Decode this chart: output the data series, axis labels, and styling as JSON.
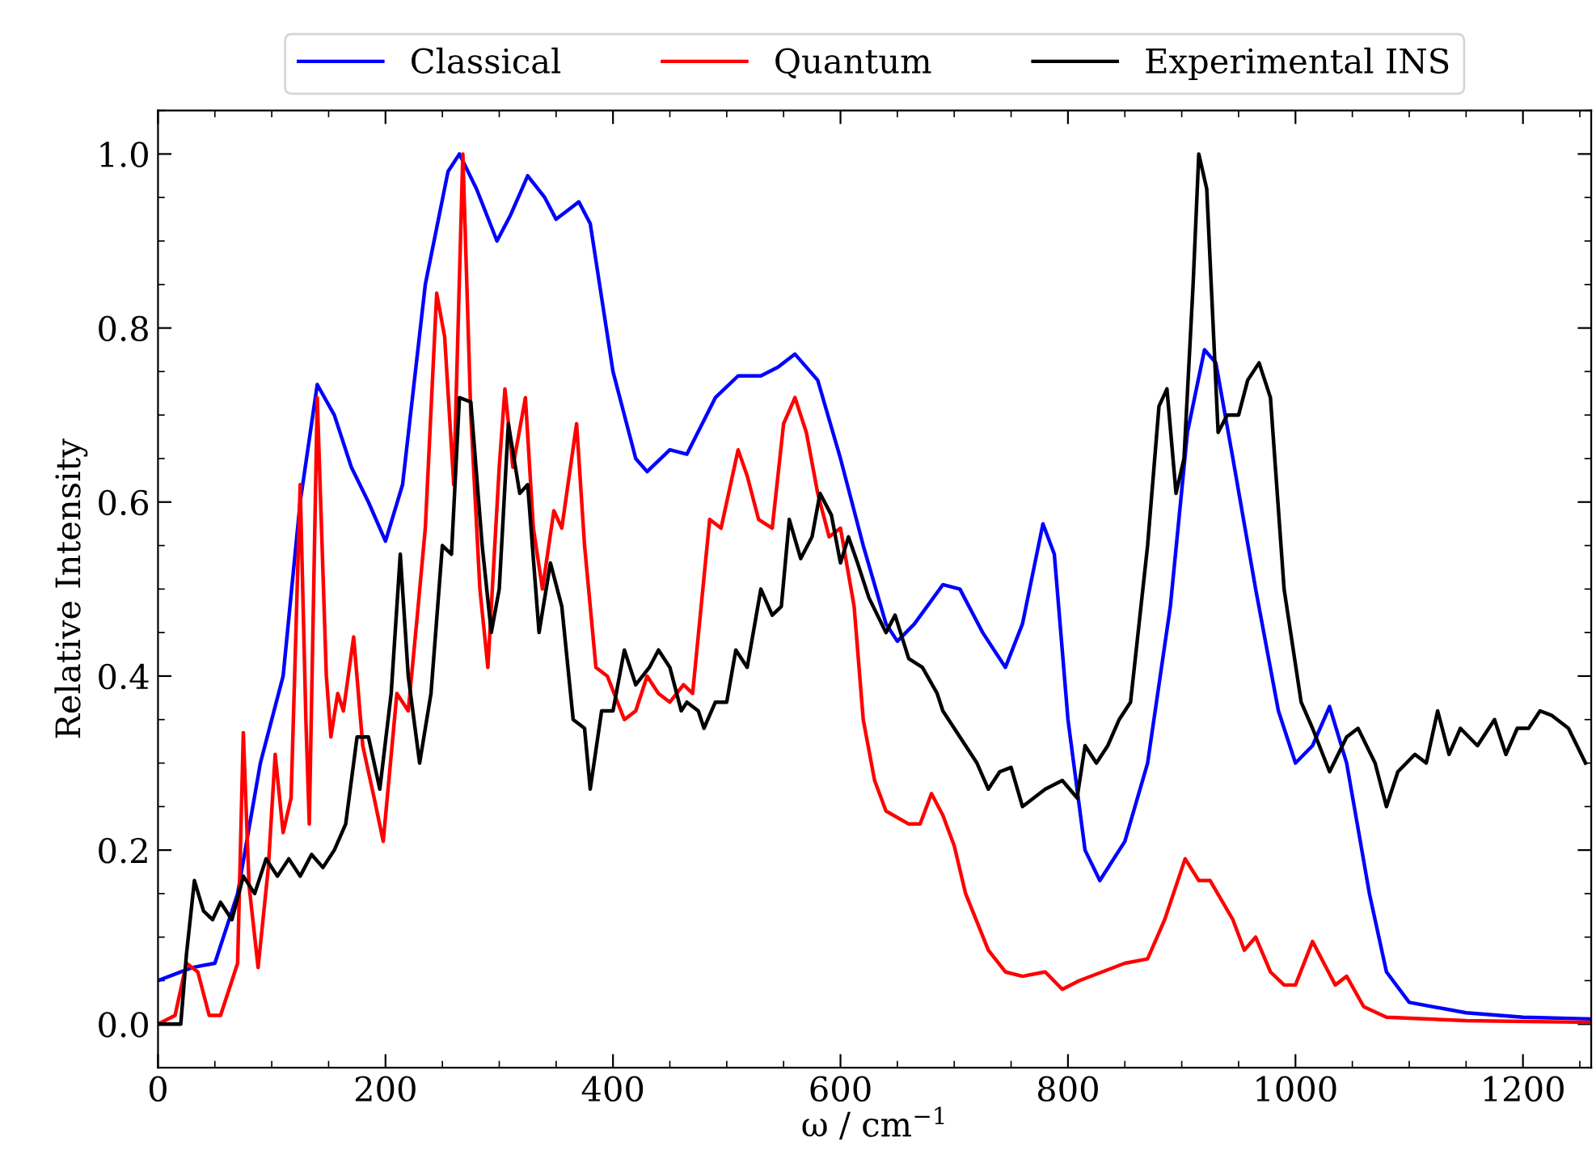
{
  "chart_data": {
    "type": "line",
    "xlabel": "ω / cm$^{−1}$",
    "ylabel": "Relative Intensity",
    "xlim": [
      0,
      1260
    ],
    "xticks": [
      0,
      200,
      400,
      600,
      800,
      1000,
      1200
    ],
    "ylim": [
      -0.05,
      1.05
    ],
    "yticks": [
      {
        "value": 0,
        "label": "0.0"
      },
      0.2,
      0.4,
      0.6,
      0.8,
      {
        "value": 1,
        "label": "1.0"
      }
    ],
    "grid": false,
    "legend": "top",
    "marker": "none",
    "line_style": "solid",
    "series": [
      {
        "name": "Classical",
        "color": "#0000ff",
        "x": [
          0,
          30,
          50,
          70,
          90,
          110,
          125,
          140,
          155,
          170,
          185,
          200,
          215,
          235,
          255,
          265,
          280,
          298,
          310,
          325,
          340,
          350,
          370,
          380,
          400,
          420,
          430,
          450,
          465,
          490,
          510,
          530,
          545,
          560,
          580,
          600,
          620,
          640,
          650,
          665,
          690,
          705,
          725,
          745,
          760,
          778,
          788,
          800,
          815,
          828,
          850,
          870,
          890,
          905,
          920,
          930,
          945,
          965,
          985,
          1000,
          1015,
          1030,
          1045,
          1065,
          1080,
          1100,
          1150,
          1200,
          1260
        ],
        "values": [
          0.05,
          0.065,
          0.07,
          0.15,
          0.3,
          0.4,
          0.6,
          0.735,
          0.7,
          0.64,
          0.6,
          0.555,
          0.62,
          0.85,
          0.98,
          1.0,
          0.96,
          0.9,
          0.93,
          0.975,
          0.95,
          0.925,
          0.945,
          0.92,
          0.75,
          0.65,
          0.635,
          0.66,
          0.655,
          0.72,
          0.745,
          0.745,
          0.755,
          0.77,
          0.74,
          0.65,
          0.55,
          0.46,
          0.44,
          0.46,
          0.505,
          0.5,
          0.45,
          0.41,
          0.46,
          0.575,
          0.54,
          0.35,
          0.2,
          0.165,
          0.21,
          0.3,
          0.48,
          0.68,
          0.775,
          0.76,
          0.65,
          0.5,
          0.36,
          0.3,
          0.32,
          0.365,
          0.3,
          0.15,
          0.06,
          0.025,
          0.013,
          0.008,
          0.006
        ]
      },
      {
        "name": "Quantum",
        "color": "#ff0000",
        "x": [
          0,
          15,
          25,
          35,
          45,
          55,
          65,
          70,
          75,
          80,
          88,
          97,
          103,
          110,
          117,
          125,
          130,
          133,
          140,
          148,
          152,
          158,
          163,
          172,
          180,
          190,
          198,
          210,
          220,
          228,
          235,
          245,
          252,
          260,
          268,
          275,
          283,
          290,
          300,
          305,
          312,
          323,
          330,
          338,
          348,
          355,
          368,
          375,
          385,
          395,
          410,
          420,
          430,
          440,
          450,
          462,
          470,
          485,
          495,
          510,
          518,
          528,
          540,
          550,
          560,
          570,
          580,
          590,
          600,
          612,
          620,
          630,
          640,
          660,
          670,
          680,
          690,
          700,
          710,
          730,
          745,
          760,
          780,
          795,
          810,
          830,
          850,
          870,
          885,
          903,
          915,
          925,
          945,
          955,
          965,
          978,
          990,
          1000,
          1015,
          1025,
          1035,
          1045,
          1060,
          1080,
          1150,
          1260
        ],
        "values": [
          0.0,
          0.01,
          0.07,
          0.06,
          0.01,
          0.01,
          0.05,
          0.07,
          0.335,
          0.16,
          0.065,
          0.18,
          0.31,
          0.22,
          0.26,
          0.62,
          0.35,
          0.23,
          0.72,
          0.4,
          0.33,
          0.38,
          0.36,
          0.445,
          0.32,
          0.26,
          0.21,
          0.38,
          0.36,
          0.47,
          0.57,
          0.84,
          0.79,
          0.62,
          1.0,
          0.7,
          0.5,
          0.41,
          0.64,
          0.73,
          0.64,
          0.72,
          0.57,
          0.5,
          0.59,
          0.57,
          0.69,
          0.55,
          0.41,
          0.4,
          0.35,
          0.36,
          0.4,
          0.38,
          0.37,
          0.39,
          0.38,
          0.58,
          0.57,
          0.66,
          0.63,
          0.58,
          0.57,
          0.69,
          0.72,
          0.68,
          0.61,
          0.56,
          0.57,
          0.48,
          0.35,
          0.28,
          0.245,
          0.23,
          0.23,
          0.265,
          0.24,
          0.205,
          0.15,
          0.085,
          0.06,
          0.055,
          0.06,
          0.04,
          0.05,
          0.06,
          0.07,
          0.075,
          0.12,
          0.19,
          0.165,
          0.165,
          0.12,
          0.085,
          0.1,
          0.06,
          0.045,
          0.045,
          0.095,
          0.07,
          0.045,
          0.055,
          0.02,
          0.008,
          0.004,
          0.002
        ]
      },
      {
        "name": "Experimental INS",
        "color": "#000000",
        "x": [
          0,
          20,
          25,
          32,
          40,
          48,
          55,
          65,
          75,
          85,
          95,
          105,
          115,
          125,
          135,
          145,
          155,
          165,
          175,
          185,
          195,
          205,
          213,
          220,
          230,
          240,
          250,
          258,
          265,
          275,
          285,
          293,
          300,
          308,
          318,
          325,
          335,
          345,
          355,
          365,
          375,
          380,
          390,
          400,
          410,
          420,
          432,
          440,
          450,
          460,
          465,
          475,
          480,
          490,
          500,
          508,
          518,
          530,
          540,
          548,
          555,
          565,
          575,
          582,
          592,
          600,
          607,
          615,
          625,
          640,
          648,
          660,
          672,
          685,
          690,
          700,
          710,
          720,
          730,
          740,
          750,
          760,
          780,
          795,
          808,
          815,
          825,
          835,
          845,
          855,
          870,
          880,
          887,
          895,
          902,
          910,
          915,
          922,
          932,
          940,
          950,
          958,
          968,
          978,
          990,
          1005,
          1015,
          1030,
          1045,
          1055,
          1070,
          1080,
          1090,
          1105,
          1115,
          1125,
          1135,
          1145,
          1160,
          1175,
          1185,
          1195,
          1205,
          1215,
          1225,
          1240,
          1255
        ],
        "values": [
          0,
          0.0,
          0.08,
          0.165,
          0.13,
          0.12,
          0.14,
          0.12,
          0.17,
          0.15,
          0.19,
          0.17,
          0.19,
          0.17,
          0.195,
          0.18,
          0.2,
          0.23,
          0.33,
          0.33,
          0.27,
          0.38,
          0.54,
          0.4,
          0.3,
          0.38,
          0.55,
          0.54,
          0.72,
          0.715,
          0.55,
          0.45,
          0.5,
          0.69,
          0.61,
          0.62,
          0.45,
          0.53,
          0.48,
          0.35,
          0.34,
          0.27,
          0.36,
          0.36,
          0.43,
          0.39,
          0.41,
          0.43,
          0.41,
          0.36,
          0.37,
          0.36,
          0.34,
          0.37,
          0.37,
          0.43,
          0.41,
          0.5,
          0.47,
          0.48,
          0.58,
          0.535,
          0.56,
          0.61,
          0.585,
          0.53,
          0.56,
          0.53,
          0.49,
          0.45,
          0.47,
          0.42,
          0.41,
          0.38,
          0.36,
          0.34,
          0.32,
          0.3,
          0.27,
          0.29,
          0.295,
          0.25,
          0.27,
          0.28,
          0.26,
          0.32,
          0.3,
          0.32,
          0.35,
          0.37,
          0.55,
          0.71,
          0.73,
          0.61,
          0.65,
          0.85,
          1.0,
          0.96,
          0.68,
          0.7,
          0.7,
          0.74,
          0.76,
          0.72,
          0.5,
          0.37,
          0.34,
          0.29,
          0.33,
          0.34,
          0.3,
          0.25,
          0.29,
          0.31,
          0.3,
          0.36,
          0.31,
          0.34,
          0.32,
          0.35,
          0.31,
          0.34,
          0.34,
          0.36,
          0.355,
          0.34,
          0.3
        ]
      }
    ]
  }
}
